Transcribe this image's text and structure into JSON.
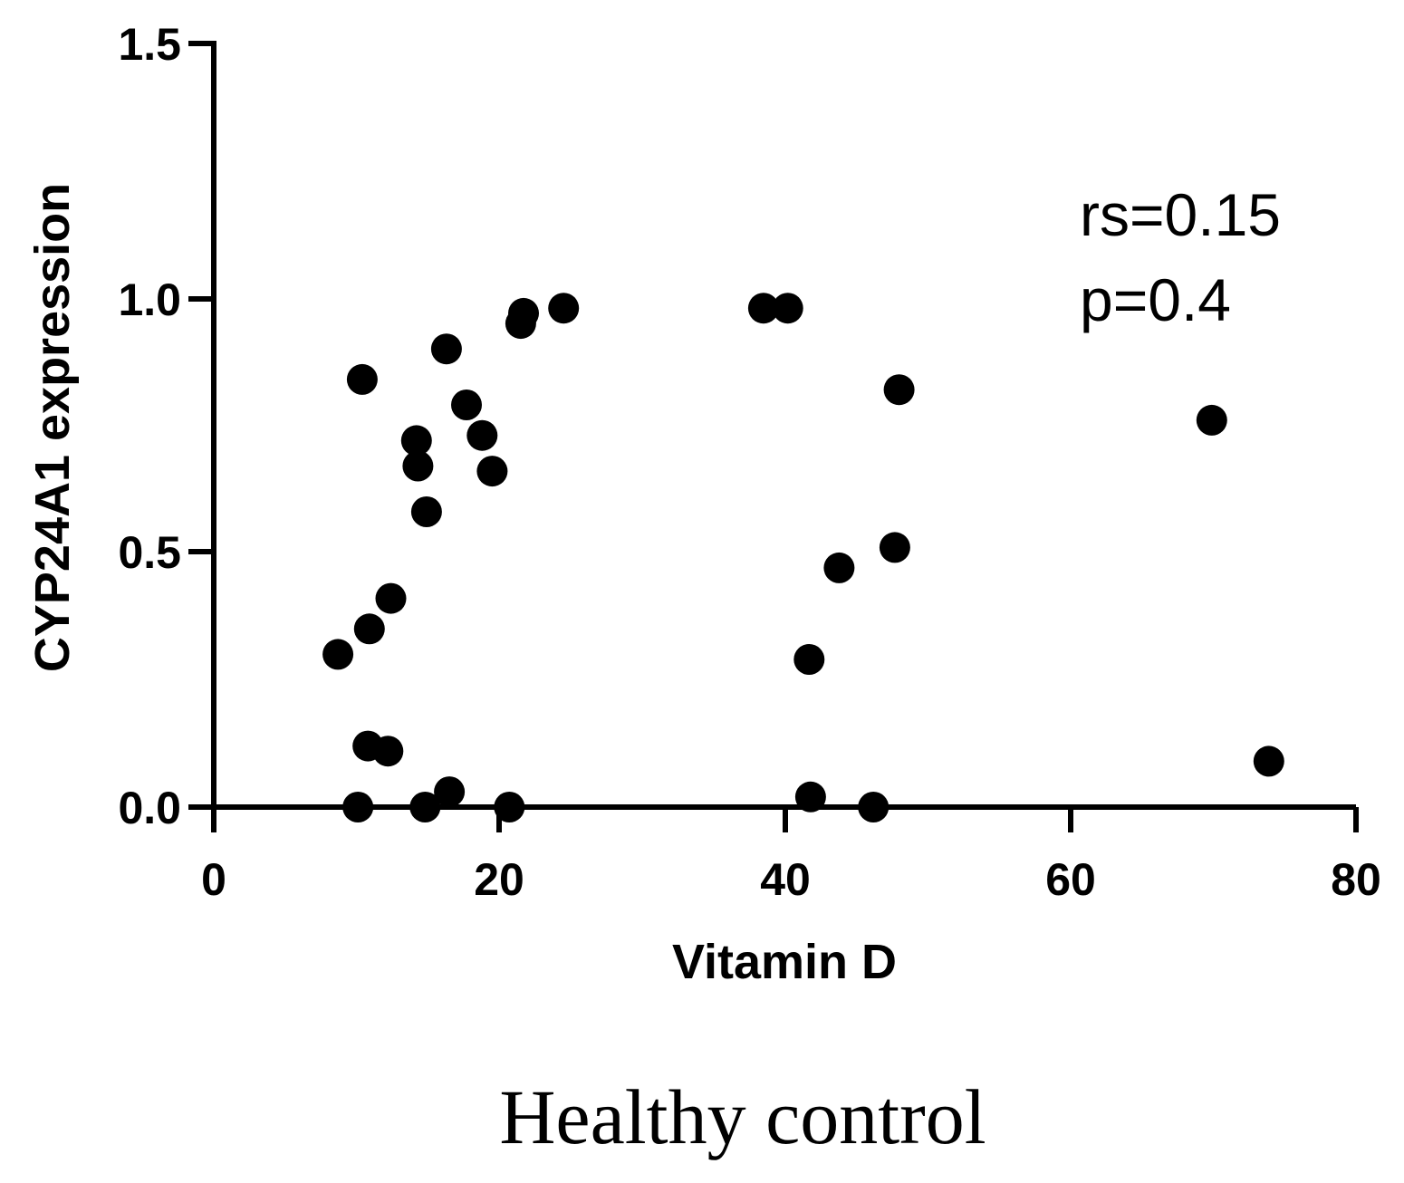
{
  "chart_data": {
    "type": "scatter",
    "xlabel": "Vitamin D",
    "ylabel": "CYP24A1 expression",
    "xlim": [
      0,
      80
    ],
    "ylim": [
      0,
      1.5
    ],
    "x_ticks": [
      "0",
      "20",
      "40",
      "60",
      "80"
    ],
    "y_ticks": [
      "0.0",
      "0.5",
      "1.0",
      "1.5"
    ],
    "annotations": {
      "rs": "rs=0.15",
      "p": "p=0.4"
    },
    "caption": "Healthy control",
    "marker_color": "#000000",
    "points": [
      {
        "x": 8.7,
        "y": 0.3
      },
      {
        "x": 10.1,
        "y": 0.0
      },
      {
        "x": 10.4,
        "y": 0.84
      },
      {
        "x": 10.8,
        "y": 0.12
      },
      {
        "x": 10.9,
        "y": 0.35
      },
      {
        "x": 12.2,
        "y": 0.11
      },
      {
        "x": 12.4,
        "y": 0.41
      },
      {
        "x": 14.2,
        "y": 0.72
      },
      {
        "x": 14.3,
        "y": 0.67
      },
      {
        "x": 14.8,
        "y": 0.0
      },
      {
        "x": 14.9,
        "y": 0.58
      },
      {
        "x": 16.3,
        "y": 0.9
      },
      {
        "x": 16.5,
        "y": 0.03
      },
      {
        "x": 17.7,
        "y": 0.79
      },
      {
        "x": 18.8,
        "y": 0.73
      },
      {
        "x": 19.5,
        "y": 0.66
      },
      {
        "x": 20.7,
        "y": 0.0
      },
      {
        "x": 21.5,
        "y": 0.95
      },
      {
        "x": 21.7,
        "y": 0.97
      },
      {
        "x": 24.5,
        "y": 0.98
      },
      {
        "x": 38.5,
        "y": 0.98
      },
      {
        "x": 40.2,
        "y": 0.98
      },
      {
        "x": 41.7,
        "y": 0.29
      },
      {
        "x": 41.8,
        "y": 0.02
      },
      {
        "x": 43.8,
        "y": 0.47
      },
      {
        "x": 46.2,
        "y": 0.0
      },
      {
        "x": 47.7,
        "y": 0.51
      },
      {
        "x": 48.0,
        "y": 0.82
      },
      {
        "x": 69.9,
        "y": 0.76
      },
      {
        "x": 73.9,
        "y": 0.09
      }
    ]
  }
}
